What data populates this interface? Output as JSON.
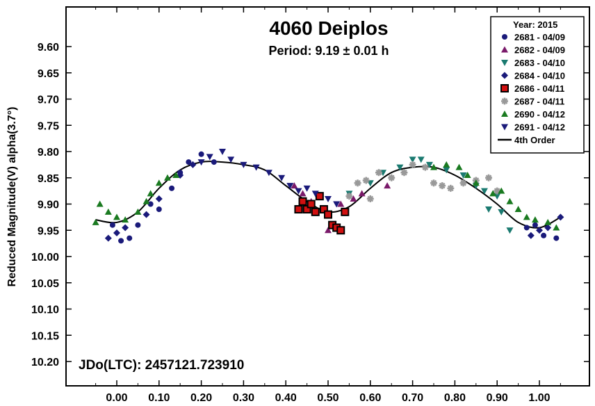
{
  "chart_data": {
    "type": "scatter",
    "title": "4060 Deiplos",
    "subtitle": "Period: 9.19 ± 0.01 h",
    "ylabel": "Reduced Magnitude(V) alpha(3.7°)",
    "xlabel": "",
    "annotation": "JDo(LTC): 2457121.723910",
    "xlim": [
      -0.1,
      1.08
    ],
    "ylim": [
      10.25,
      9.55
    ],
    "y_inverted": true,
    "grid": false,
    "legend_position": "top-right",
    "legend_title": "Year: 2015",
    "x_ticks": [
      "0.00",
      "0.10",
      "0.20",
      "0.30",
      "0.40",
      "0.50",
      "0.60",
      "0.70",
      "0.80",
      "0.90",
      "1.00"
    ],
    "y_ticks": [
      "9.60",
      "9.65",
      "9.70",
      "9.75",
      "9.80",
      "9.85",
      "9.90",
      "9.95",
      "10.00",
      "10.05",
      "10.10",
      "10.15",
      "10.20"
    ],
    "fit_curve": {
      "name": "4th Order",
      "color": "#000000",
      "points": [
        [
          -0.05,
          9.93
        ],
        [
          0.0,
          9.935
        ],
        [
          0.05,
          9.915
        ],
        [
          0.1,
          9.87
        ],
        [
          0.15,
          9.835
        ],
        [
          0.2,
          9.82
        ],
        [
          0.25,
          9.82
        ],
        [
          0.3,
          9.825
        ],
        [
          0.35,
          9.835
        ],
        [
          0.4,
          9.865
        ],
        [
          0.45,
          9.895
        ],
        [
          0.5,
          9.915
        ],
        [
          0.55,
          9.905
        ],
        [
          0.6,
          9.87
        ],
        [
          0.65,
          9.84
        ],
        [
          0.7,
          9.83
        ],
        [
          0.75,
          9.83
        ],
        [
          0.8,
          9.845
        ],
        [
          0.85,
          9.87
        ],
        [
          0.9,
          9.9
        ],
        [
          0.95,
          9.935
        ],
        [
          1.0,
          9.945
        ],
        [
          1.05,
          9.925
        ]
      ]
    },
    "series": [
      {
        "name": "2681 - 04/09",
        "marker": "circle",
        "color": "#1a1a7a",
        "points": [
          [
            -0.01,
            9.94
          ],
          [
            0.01,
            9.97
          ],
          [
            0.03,
            9.965
          ],
          [
            0.05,
            9.94
          ],
          [
            0.08,
            9.9
          ],
          [
            0.1,
            9.91
          ],
          [
            0.13,
            9.87
          ],
          [
            0.15,
            9.84
          ],
          [
            0.17,
            9.82
          ],
          [
            0.2,
            9.805
          ],
          [
            0.23,
            9.82
          ],
          [
            0.97,
            9.945
          ],
          [
            0.99,
            9.94
          ],
          [
            1.01,
            9.96
          ],
          [
            1.04,
            9.965
          ]
        ]
      },
      {
        "name": "2682 - 04/09",
        "marker": "triangle-up",
        "color": "#7a1a6a",
        "points": [
          [
            0.42,
            9.865
          ],
          [
            0.44,
            9.88
          ],
          [
            0.46,
            9.895
          ],
          [
            0.5,
            9.95
          ],
          [
            0.53,
            9.9
          ],
          [
            0.56,
            9.89
          ],
          [
            0.58,
            9.88
          ],
          [
            0.64,
            9.865
          ]
        ]
      },
      {
        "name": "2683 - 04/10",
        "marker": "triangle-down",
        "color": "#1a7a70",
        "points": [
          [
            0.55,
            9.88
          ],
          [
            0.6,
            9.86
          ],
          [
            0.63,
            9.84
          ],
          [
            0.67,
            9.83
          ],
          [
            0.7,
            9.815
          ],
          [
            0.72,
            9.815
          ],
          [
            0.74,
            9.825
          ],
          [
            0.78,
            9.835
          ],
          [
            0.82,
            9.845
          ],
          [
            0.85,
            9.865
          ],
          [
            0.87,
            9.875
          ],
          [
            0.9,
            9.885
          ],
          [
            0.88,
            9.91
          ],
          [
            0.91,
            9.915
          ],
          [
            0.93,
            9.95
          ]
        ]
      },
      {
        "name": "2684 - 04/10",
        "marker": "diamond",
        "color": "#1a1a7a",
        "points": [
          [
            -0.02,
            9.965
          ],
          [
            0.0,
            9.955
          ],
          [
            0.02,
            9.945
          ],
          [
            0.07,
            9.92
          ],
          [
            0.1,
            9.89
          ],
          [
            0.15,
            9.845
          ],
          [
            0.18,
            9.825
          ],
          [
            0.98,
            9.96
          ],
          [
            1.0,
            9.95
          ],
          [
            1.02,
            9.945
          ],
          [
            1.05,
            9.925
          ]
        ]
      },
      {
        "name": "2686 - 04/11",
        "marker": "square",
        "color": "#d01010",
        "points": [
          [
            0.43,
            9.91
          ],
          [
            0.44,
            9.895
          ],
          [
            0.45,
            9.91
          ],
          [
            0.46,
            9.9
          ],
          [
            0.47,
            9.915
          ],
          [
            0.48,
            9.885
          ],
          [
            0.49,
            9.91
          ],
          [
            0.5,
            9.92
          ],
          [
            0.51,
            9.94
          ],
          [
            0.52,
            9.945
          ],
          [
            0.53,
            9.95
          ],
          [
            0.54,
            9.915
          ]
        ]
      },
      {
        "name": "2687 - 04/11",
        "marker": "asterisk",
        "color": "#999999",
        "points": [
          [
            0.55,
            9.885
          ],
          [
            0.57,
            9.86
          ],
          [
            0.59,
            9.855
          ],
          [
            0.6,
            9.89
          ],
          [
            0.62,
            9.84
          ],
          [
            0.65,
            9.85
          ],
          [
            0.68,
            9.84
          ],
          [
            0.7,
            9.825
          ],
          [
            0.73,
            9.83
          ],
          [
            0.75,
            9.86
          ],
          [
            0.77,
            9.865
          ],
          [
            0.79,
            9.87
          ],
          [
            0.82,
            9.86
          ],
          [
            0.85,
            9.855
          ],
          [
            0.88,
            9.85
          ],
          [
            0.9,
            9.875
          ]
        ]
      },
      {
        "name": "2690 - 04/12",
        "marker": "triangle-up",
        "color": "#1a7a20",
        "points": [
          [
            -0.05,
            9.935
          ],
          [
            -0.04,
            9.9
          ],
          [
            -0.02,
            9.915
          ],
          [
            0.0,
            9.925
          ],
          [
            0.02,
            9.93
          ],
          [
            0.05,
            9.915
          ],
          [
            0.07,
            9.895
          ],
          [
            0.08,
            9.88
          ],
          [
            0.1,
            9.86
          ],
          [
            0.12,
            9.85
          ],
          [
            0.14,
            9.845
          ],
          [
            0.75,
            9.83
          ],
          [
            0.78,
            9.825
          ],
          [
            0.81,
            9.83
          ],
          [
            0.83,
            9.845
          ],
          [
            0.85,
            9.86
          ],
          [
            0.89,
            9.88
          ],
          [
            0.91,
            9.875
          ],
          [
            0.93,
            9.895
          ],
          [
            0.95,
            9.91
          ],
          [
            0.97,
            9.925
          ],
          [
            0.99,
            9.93
          ],
          [
            1.02,
            9.935
          ],
          [
            1.04,
            9.945
          ]
        ]
      },
      {
        "name": "2691 - 04/12",
        "marker": "triangle-down",
        "color": "#1a1a7a",
        "points": [
          [
            0.2,
            9.82
          ],
          [
            0.22,
            9.81
          ],
          [
            0.25,
            9.8
          ],
          [
            0.27,
            9.815
          ],
          [
            0.3,
            9.825
          ],
          [
            0.33,
            9.83
          ],
          [
            0.36,
            9.84
          ],
          [
            0.39,
            9.85
          ],
          [
            0.41,
            9.865
          ],
          [
            0.43,
            9.875
          ],
          [
            0.45,
            9.87
          ],
          [
            0.47,
            9.88
          ],
          [
            0.5,
            9.89
          ],
          [
            0.52,
            9.9
          ]
        ]
      }
    ]
  }
}
